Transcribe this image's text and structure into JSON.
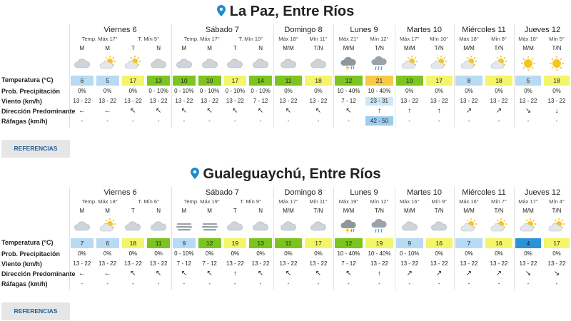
{
  "sections": [
    {
      "location": "La Paz, Entre Ríos",
      "days": [
        {
          "name": "Viernes 6",
          "sub": [
            "Temp. Máx 17°",
            "T. Mín 5°"
          ],
          "periods": [
            "M",
            "M",
            "T",
            "N"
          ],
          "icons": [
            "cloud",
            "partly-sun",
            "partly-sun",
            "cloud"
          ],
          "temps": [
            6,
            5,
            17,
            13
          ],
          "tcolors": [
            "#b8daf2",
            "#b8daf2",
            "#f3f56a",
            "#7cc41f"
          ],
          "precip": [
            "0%",
            "0%",
            "0%",
            "0 - 10%"
          ],
          "wind": [
            "13 - 22",
            "13 - 22",
            "13 - 22",
            "13 - 22"
          ],
          "dir": [
            "←",
            "←",
            "↖",
            "↖"
          ],
          "gust": [
            "-",
            "-",
            "-",
            "-"
          ]
        },
        {
          "name": "Sábado 7",
          "sub": [
            "Temp. Máx 17°",
            "T. Mín 10°"
          ],
          "periods": [
            "M",
            "M",
            "T",
            "N"
          ],
          "icons": [
            "cloud",
            "cloud",
            "cloud",
            "cloud"
          ],
          "temps": [
            10,
            10,
            17,
            14
          ],
          "tcolors": [
            "#7cc41f",
            "#7cc41f",
            "#f3f56a",
            "#7cc41f"
          ],
          "precip": [
            "0 - 10%",
            "0 - 10%",
            "0 - 10%",
            "0 - 10%"
          ],
          "wind": [
            "13 - 22",
            "13 - 22",
            "13 - 22",
            "7 - 12"
          ],
          "dir": [
            "↖",
            "↖",
            "↖",
            "↖"
          ],
          "gust": [
            "-",
            "-",
            "-",
            "-"
          ]
        },
        {
          "name": "Domingo 8",
          "sub": [
            "Máx 18°",
            "Mín 11°"
          ],
          "periods": [
            "M/M",
            "T/N"
          ],
          "icons": [
            "cloud",
            "cloud"
          ],
          "temps": [
            11,
            18
          ],
          "tcolors": [
            "#7cc41f",
            "#f3f56a"
          ],
          "precip": [
            "0%",
            "0%"
          ],
          "wind": [
            "13 - 22",
            "13 - 22"
          ],
          "dir": [
            "↖",
            "↖"
          ],
          "gust": [
            "-",
            "-"
          ]
        },
        {
          "name": "Lunes 9",
          "sub": [
            "Máx 21°",
            "Mín 12°"
          ],
          "periods": [
            "M/M",
            "T/N"
          ],
          "icons": [
            "storm",
            "rain"
          ],
          "temps": [
            12,
            21
          ],
          "tcolors": [
            "#7cc41f",
            "#f7c948"
          ],
          "precip": [
            "10 - 40%",
            "10 - 40%"
          ],
          "wind": [
            "7 - 12",
            "23 - 31"
          ],
          "dir": [
            "↖",
            "↑"
          ],
          "gust": [
            "-",
            "42 - 50"
          ],
          "hlwind": 1
        },
        {
          "name": "Martes 10",
          "sub": [
            "Máx 17°",
            "Mín 10°"
          ],
          "periods": [
            "M/M",
            "T/N"
          ],
          "icons": [
            "partly-sun",
            "partly-sun"
          ],
          "temps": [
            10,
            17
          ],
          "tcolors": [
            "#7cc41f",
            "#f3f56a"
          ],
          "precip": [
            "0%",
            "0%"
          ],
          "wind": [
            "13 - 22",
            "13 - 22"
          ],
          "dir": [
            "↑",
            "↑"
          ],
          "gust": [
            "-",
            "-"
          ]
        },
        {
          "name": "Miércoles 11",
          "sub": [
            "Máx 18°",
            "Mín 8°"
          ],
          "periods": [
            "M/M",
            "T/N"
          ],
          "icons": [
            "partly-sun",
            "partly-sun"
          ],
          "temps": [
            8,
            18
          ],
          "tcolors": [
            "#b8daf2",
            "#f3f56a"
          ],
          "precip": [
            "0%",
            "0%"
          ],
          "wind": [
            "13 - 22",
            "13 - 22"
          ],
          "dir": [
            "↗",
            "↗"
          ],
          "gust": [
            "-",
            "-"
          ]
        },
        {
          "name": "Jueves 12",
          "sub": [
            "Máx 18°",
            "Mín 5°"
          ],
          "periods": [
            "M/M",
            "T/N"
          ],
          "icons": [
            "sun",
            "sun"
          ],
          "temps": [
            5,
            18
          ],
          "tcolors": [
            "#b8daf2",
            "#f3f56a"
          ],
          "precip": [
            "0%",
            "0%"
          ],
          "wind": [
            "13 - 22",
            "13 - 22"
          ],
          "dir": [
            "↘",
            "↓"
          ],
          "gust": [
            "-",
            "-"
          ]
        }
      ]
    },
    {
      "location": "Gualeguaychú, Entre Ríos",
      "days": [
        {
          "name": "Viernes 6",
          "sub": [
            "Temp. Máx 18°",
            "T. Mín 6°"
          ],
          "periods": [
            "M",
            "M",
            "T",
            "N"
          ],
          "icons": [
            "cloud",
            "partly-sun",
            "cloud",
            "cloud"
          ],
          "temps": [
            7,
            6,
            18,
            11
          ],
          "tcolors": [
            "#b8daf2",
            "#b8daf2",
            "#f3f56a",
            "#7cc41f"
          ],
          "precip": [
            "0%",
            "0%",
            "0%",
            "0%"
          ],
          "wind": [
            "13 - 22",
            "13 - 22",
            "13 - 22",
            "13 - 22"
          ],
          "dir": [
            "←",
            "←",
            "↖",
            "↖"
          ],
          "gust": [
            "-",
            "-",
            "-",
            "-"
          ]
        },
        {
          "name": "Sábado 7",
          "sub": [
            "Temp. Máx 19°",
            "T. Mín 9°"
          ],
          "periods": [
            "M",
            "M",
            "T",
            "N"
          ],
          "icons": [
            "fog",
            "fog",
            "cloud",
            "cloud"
          ],
          "temps": [
            9,
            12,
            19,
            13
          ],
          "tcolors": [
            "#b8daf2",
            "#7cc41f",
            "#f3f56a",
            "#7cc41f"
          ],
          "precip": [
            "0 - 10%",
            "0%",
            "0%",
            "0%"
          ],
          "wind": [
            "7 - 12",
            "7 - 12",
            "13 - 22",
            "13 - 22"
          ],
          "dir": [
            "↖",
            "↖",
            "↑",
            "↖"
          ],
          "gust": [
            "-",
            "-",
            "-",
            "-"
          ]
        },
        {
          "name": "Domingo 8",
          "sub": [
            "Máx 17°",
            "Mín 11°"
          ],
          "periods": [
            "M/M",
            "T/N"
          ],
          "icons": [
            "cloud",
            "cloud"
          ],
          "temps": [
            11,
            17
          ],
          "tcolors": [
            "#7cc41f",
            "#f3f56a"
          ],
          "precip": [
            "0%",
            "0%"
          ],
          "wind": [
            "13 - 22",
            "13 - 22"
          ],
          "dir": [
            "↖",
            "↖"
          ],
          "gust": [
            "-",
            "-"
          ]
        },
        {
          "name": "Lunes 9",
          "sub": [
            "Máx 19°",
            "Mín 12°"
          ],
          "periods": [
            "M/M",
            "T/N"
          ],
          "icons": [
            "storm",
            "rain"
          ],
          "temps": [
            12,
            19
          ],
          "tcolors": [
            "#7cc41f",
            "#f3f56a"
          ],
          "precip": [
            "10 - 40%",
            "10 - 40%"
          ],
          "wind": [
            "7 - 12",
            "13 - 22"
          ],
          "dir": [
            "↖",
            "↑"
          ],
          "gust": [
            "-",
            "-"
          ]
        },
        {
          "name": "Martes 10",
          "sub": [
            "Máx 16°",
            "Mín 9°"
          ],
          "periods": [
            "M/M",
            "T/N"
          ],
          "icons": [
            "cloud",
            "cloud"
          ],
          "temps": [
            9,
            16
          ],
          "tcolors": [
            "#b8daf2",
            "#f3f56a"
          ],
          "precip": [
            "0 - 10%",
            "0%"
          ],
          "wind": [
            "13 - 22",
            "13 - 22"
          ],
          "dir": [
            "↗",
            "↗"
          ],
          "gust": [
            "-",
            "-"
          ]
        },
        {
          "name": "Miércoles 11",
          "sub": [
            "Máx 16°",
            "Mín 7°"
          ],
          "periods": [
            "M/M",
            "T/N"
          ],
          "icons": [
            "partly-sun",
            "partly-sun"
          ],
          "temps": [
            7,
            16
          ],
          "tcolors": [
            "#b8daf2",
            "#f3f56a"
          ],
          "precip": [
            "0%",
            "0%"
          ],
          "wind": [
            "13 - 22",
            "13 - 22"
          ],
          "dir": [
            "↗",
            "↗"
          ],
          "gust": [
            "-",
            "-"
          ]
        },
        {
          "name": "Jueves 12",
          "sub": [
            "Máx 17°",
            "Mín 4°"
          ],
          "periods": [
            "M/M",
            "T/N"
          ],
          "icons": [
            "partly-sun",
            "partly-sun"
          ],
          "temps": [
            4,
            17
          ],
          "tcolors": [
            "#2b93d8",
            "#f3f56a"
          ],
          "precip": [
            "0%",
            "0%"
          ],
          "wind": [
            "13 - 22",
            "13 - 22"
          ],
          "dir": [
            "↘",
            "↘"
          ],
          "gust": [
            "-",
            "-"
          ]
        }
      ]
    }
  ],
  "row_labels": [
    "Temperatura (°C)",
    "Prob. Precipitación",
    "Viento (km/h)",
    "Dirección Predominante",
    "Ráfagas (km/h)"
  ],
  "button_label": "REFERENCIAS",
  "colors": {
    "pin": "#1f8acb",
    "button_text": "#1f5e98",
    "wind_highlight": "#cfe6f6",
    "gust_highlight": "#9ccdef"
  }
}
